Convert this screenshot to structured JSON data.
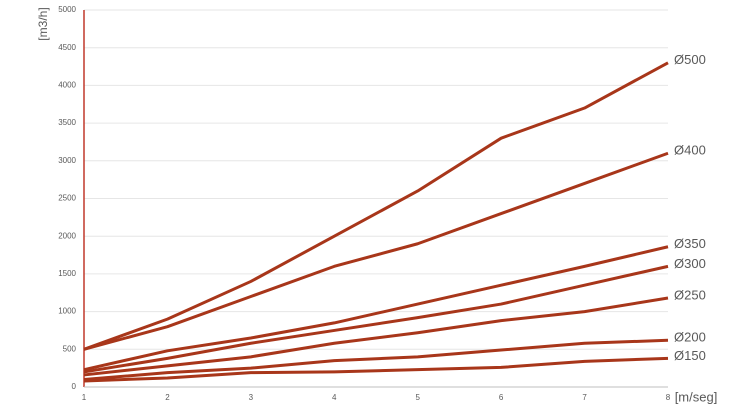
{
  "chart_data": {
    "type": "line",
    "y_label": "[m3/h]",
    "x_label": "[m/seg]",
    "x": [
      1,
      2,
      3,
      4,
      5,
      6,
      7,
      8
    ],
    "xlim": [
      1,
      8
    ],
    "xticks": [
      1,
      2,
      3,
      4,
      5,
      6,
      7,
      8
    ],
    "ylim": [
      0,
      5000
    ],
    "yticks": [
      0,
      500,
      1000,
      1500,
      2000,
      2500,
      3000,
      3500,
      4000,
      4500,
      5000
    ],
    "grid": true,
    "series": [
      {
        "name": "Ø500",
        "color": "#a8361a",
        "values": [
          500,
          900,
          1400,
          2000,
          2600,
          3300,
          3700,
          4300
        ]
      },
      {
        "name": "Ø400",
        "color": "#a8361a",
        "values": [
          500,
          800,
          1200,
          1600,
          1900,
          2300,
          2700,
          3100
        ]
      },
      {
        "name": "Ø350",
        "color": "#a8361a",
        "values": [
          230,
          480,
          650,
          850,
          1100,
          1350,
          1600,
          1860
        ]
      },
      {
        "name": "Ø300",
        "color": "#a8361a",
        "values": [
          200,
          380,
          580,
          750,
          920,
          1100,
          1350,
          1600
        ]
      },
      {
        "name": "Ø250",
        "color": "#a8361a",
        "values": [
          160,
          280,
          400,
          580,
          720,
          880,
          1000,
          1180
        ]
      },
      {
        "name": "Ø200",
        "color": "#a8361a",
        "values": [
          100,
          190,
          250,
          350,
          400,
          490,
          580,
          620
        ]
      },
      {
        "name": "Ø150",
        "color": "#a8361a",
        "values": [
          80,
          120,
          190,
          200,
          230,
          260,
          340,
          380
        ]
      }
    ]
  }
}
